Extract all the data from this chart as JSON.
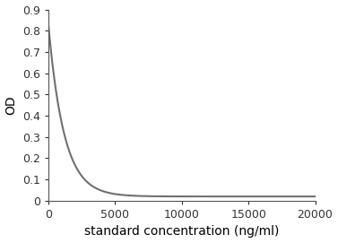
{
  "title": "",
  "xlabel": "standard concentration (ng/ml)",
  "ylabel": "OD",
  "xlim": [
    0,
    20000
  ],
  "ylim": [
    0,
    0.9
  ],
  "xticks": [
    0,
    5000,
    10000,
    15000,
    20000
  ],
  "yticks": [
    0,
    0.1,
    0.2,
    0.3,
    0.4,
    0.5,
    0.6,
    0.7,
    0.8,
    0.9
  ],
  "line_color": "#707070",
  "line_width": 1.5,
  "background_color": "#ffffff",
  "curve_start_y": 0.82,
  "decay_k": 0.00085,
  "baseline": 0.02,
  "spine_color": "#555555",
  "tick_label_size": 9,
  "axis_label_size": 10
}
